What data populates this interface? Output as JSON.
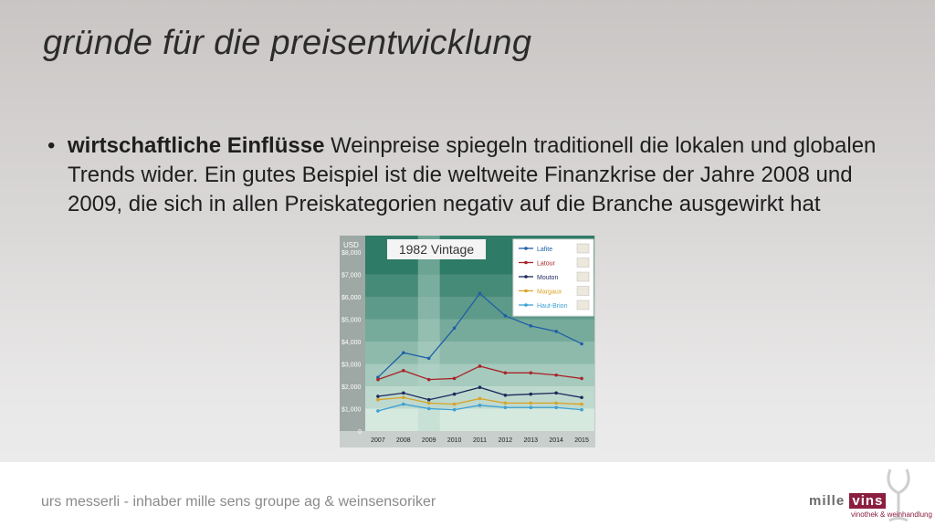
{
  "slide": {
    "title": "gründe für die preisentwicklung",
    "bullet": {
      "bold": "wirtschaftliche Einflüsse",
      "text": " Weinpreise spiegeln traditionell die lokalen und globalen Trends wider. Ein gutes Beispiel ist die weltweite Finanzkrise der Jahre 2008 und 2009, die sich in allen Preiskategorien negativ auf die Branche ausgewirkt hat"
    },
    "footer": "urs messerli - inhaber mille sens groupe ag & weinsensoriker",
    "logo": {
      "word_left": "mille",
      "word_right": "vins",
      "subtitle": "vinothek & weinhandlung"
    }
  },
  "colors": {
    "band_dark": "#2e7b67",
    "band_light": "#d6e9df",
    "highlight_column": "#b9d6cc",
    "lafite": "#1f5fa8",
    "latour": "#a8252a",
    "mouton": "#1c2a5c",
    "margaux": "#d9a325",
    "haut_brion": "#3aa0d4"
  },
  "chart_data": {
    "type": "line",
    "title": "1982 Vintage",
    "ylabel": "USD",
    "x": [
      "2007",
      "2008",
      "2009",
      "2010",
      "2011",
      "2012",
      "2013",
      "2014",
      "2015"
    ],
    "ylim": [
      0,
      8000
    ],
    "yticks": [
      "0",
      "$1,000",
      "$2,000",
      "$3,000",
      "$4,000",
      "$5,000",
      "$6,000",
      "$7,000",
      "$8,000"
    ],
    "highlight": "2009",
    "legend_position": "top-right",
    "series": [
      {
        "name": "Lafite",
        "color_key": "lafite",
        "values": [
          2400,
          3500,
          3250,
          4600,
          6150,
          5150,
          4700,
          4450,
          3900
        ]
      },
      {
        "name": "Latour",
        "color_key": "latour",
        "values": [
          2300,
          2700,
          2300,
          2350,
          2900,
          2600,
          2600,
          2500,
          2350
        ]
      },
      {
        "name": "Mouton",
        "color_key": "mouton",
        "values": [
          1550,
          1700,
          1400,
          1650,
          1950,
          1600,
          1650,
          1700,
          1500
        ]
      },
      {
        "name": "Margaux",
        "color_key": "margaux",
        "values": [
          1400,
          1500,
          1250,
          1200,
          1450,
          1250,
          1250,
          1250,
          1200
        ]
      },
      {
        "name": "Haut-Brion",
        "color_key": "haut_brion",
        "values": [
          900,
          1200,
          1000,
          950,
          1150,
          1050,
          1050,
          1050,
          950
        ]
      }
    ]
  }
}
